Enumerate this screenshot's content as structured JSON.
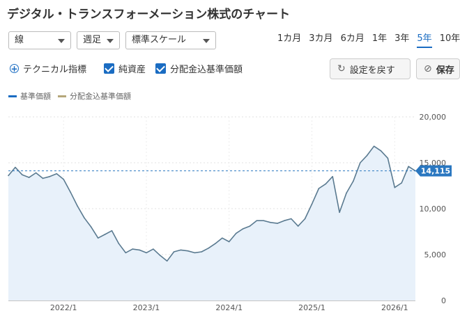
{
  "page": {
    "title": "デジタル・トランスフォーメーション株式のチャート"
  },
  "controls": {
    "chart_type": "線",
    "interval": "週足",
    "scale": "標準スケール",
    "periods": [
      "1カ月",
      "3カ月",
      "6カ月",
      "1年",
      "3年",
      "5年",
      "10年"
    ],
    "active_period": "5年",
    "technical_label": "テクニカル指標",
    "checkbox_net_assets": "純資産",
    "checkbox_dividend": "分配金込基準価額",
    "reset_label": "設定を戻す",
    "save_label": "保存"
  },
  "colors": {
    "accent": "#1a6cc2",
    "line": "#5a7a90",
    "fill": "#e8f1fa",
    "dividend_line": "#b5a77a",
    "current_badge": "#2a77c0"
  },
  "chart_data": {
    "type": "area",
    "title": "",
    "x_ticks": [
      "2022/1",
      "2023/1",
      "2024/1",
      "2025/1",
      "2026/1"
    ],
    "y_ticks": [
      "20,000",
      "15,000",
      "10,000",
      "5,000",
      "0"
    ],
    "ylim": [
      0,
      20000
    ],
    "xlim": [
      "2021-05",
      "2026-04"
    ],
    "grid": true,
    "legend_position": "top-left",
    "current_value": 14115,
    "current_value_label": "14,115",
    "series": [
      {
        "name": "基準価額",
        "color": "#5a7a90",
        "points": [
          [
            "2021-05",
            13600
          ],
          [
            "2021-06",
            14500
          ],
          [
            "2021-07",
            13700
          ],
          [
            "2021-08",
            13400
          ],
          [
            "2021-09",
            13900
          ],
          [
            "2021-10",
            13300
          ],
          [
            "2021-11",
            13500
          ],
          [
            "2021-12",
            13800
          ],
          [
            "2022-01",
            13200
          ],
          [
            "2022-02",
            11800
          ],
          [
            "2022-03",
            10300
          ],
          [
            "2022-04",
            9000
          ],
          [
            "2022-05",
            8000
          ],
          [
            "2022-06",
            6800
          ],
          [
            "2022-07",
            7200
          ],
          [
            "2022-08",
            7600
          ],
          [
            "2022-09",
            6200
          ],
          [
            "2022-10",
            5200
          ],
          [
            "2022-11",
            5600
          ],
          [
            "2022-12",
            5500
          ],
          [
            "2023-01",
            5200
          ],
          [
            "2023-02",
            5600
          ],
          [
            "2023-03",
            4900
          ],
          [
            "2023-04",
            4300
          ],
          [
            "2023-05",
            5300
          ],
          [
            "2023-06",
            5500
          ],
          [
            "2023-07",
            5400
          ],
          [
            "2023-08",
            5200
          ],
          [
            "2023-09",
            5300
          ],
          [
            "2023-10",
            5700
          ],
          [
            "2023-11",
            6200
          ],
          [
            "2023-12",
            6800
          ],
          [
            "2024-01",
            6400
          ],
          [
            "2024-02",
            7300
          ],
          [
            "2024-03",
            7800
          ],
          [
            "2024-04",
            8100
          ],
          [
            "2024-05",
            8700
          ],
          [
            "2024-06",
            8700
          ],
          [
            "2024-07",
            8500
          ],
          [
            "2024-08",
            8400
          ],
          [
            "2024-09",
            8700
          ],
          [
            "2024-10",
            8900
          ],
          [
            "2024-11",
            8100
          ],
          [
            "2024-12",
            8900
          ],
          [
            "2025-01",
            10500
          ],
          [
            "2025-02",
            12200
          ],
          [
            "2025-03",
            12700
          ],
          [
            "2025-04",
            13500
          ],
          [
            "2025-05",
            9600
          ],
          [
            "2025-06",
            11700
          ],
          [
            "2025-07",
            13000
          ],
          [
            "2025-08",
            15000
          ],
          [
            "2025-09",
            15800
          ],
          [
            "2025-10",
            16800
          ],
          [
            "2025-11",
            16300
          ],
          [
            "2025-12",
            15500
          ],
          [
            "2026-01",
            12300
          ],
          [
            "2026-02",
            12800
          ],
          [
            "2026-03",
            14600
          ],
          [
            "2026-04",
            14115
          ]
        ]
      },
      {
        "name": "分配金込基準価額",
        "color": "#b5a77a",
        "points": []
      }
    ]
  }
}
